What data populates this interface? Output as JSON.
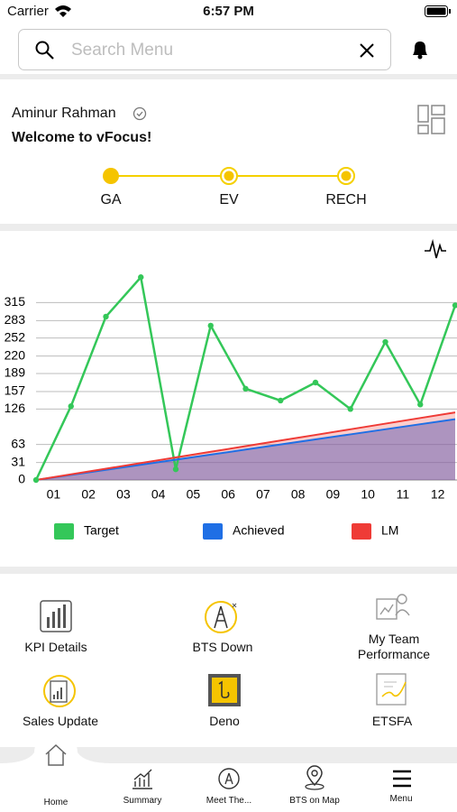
{
  "status_bar": {
    "carrier": "Carrier",
    "time": "6:57 PM"
  },
  "search": {
    "placeholder": "Search Menu"
  },
  "profile": {
    "name": "Aminur Rahman",
    "welcome": "Welcome to vFocus!",
    "steps": [
      "GA",
      "EV",
      "RECH"
    ]
  },
  "chart_data": {
    "type": "line",
    "x": [
      0,
      1,
      2,
      3,
      4,
      5,
      6,
      7,
      8,
      9,
      10,
      11,
      12
    ],
    "xlim": [
      0,
      12
    ],
    "xticks": [
      {
        "value": 0.5,
        "label": "01"
      },
      {
        "value": 1.5,
        "label": "02"
      },
      {
        "value": 2.5,
        "label": "03"
      },
      {
        "value": 3.5,
        "label": "04"
      },
      {
        "value": 4.5,
        "label": "05"
      },
      {
        "value": 5.5,
        "label": "06"
      },
      {
        "value": 6.5,
        "label": "07"
      },
      {
        "value": 7.5,
        "label": "08"
      },
      {
        "value": 8.5,
        "label": "09"
      },
      {
        "value": 9.5,
        "label": "10"
      },
      {
        "value": 10.5,
        "label": "11"
      },
      {
        "value": 11.5,
        "label": "12"
      }
    ],
    "ylim": [
      0,
      370
    ],
    "yticks": [
      0,
      31,
      63,
      126,
      157,
      189,
      220,
      252,
      283,
      315
    ],
    "grid": true,
    "series": [
      {
        "name": "Target",
        "color": "#34c759",
        "values": [
          0,
          131,
          290,
          360,
          19,
          274,
          162,
          141,
          173,
          126,
          245,
          134,
          310
        ]
      },
      {
        "name": "Achieved",
        "color": "#1f6fe5",
        "values": [
          0,
          9,
          18,
          27,
          36,
          45,
          54,
          63,
          72,
          81,
          90,
          99,
          108
        ]
      },
      {
        "name": "LM",
        "color": "#ef3b36",
        "values": [
          0,
          10,
          20,
          30,
          40,
          50,
          60,
          70,
          80,
          90,
          100,
          110,
          120
        ]
      }
    ]
  },
  "menu": [
    {
      "label": "KPI Details"
    },
    {
      "label": "BTS Down"
    },
    {
      "label": [
        "My Team",
        "Performance"
      ]
    },
    {
      "label": "Sales Update"
    },
    {
      "label": "Deno"
    },
    {
      "label": "ETSFA"
    }
  ],
  "nav": [
    "Home",
    "Summary",
    "Meet The...",
    "BTS on Map",
    "Menu"
  ]
}
